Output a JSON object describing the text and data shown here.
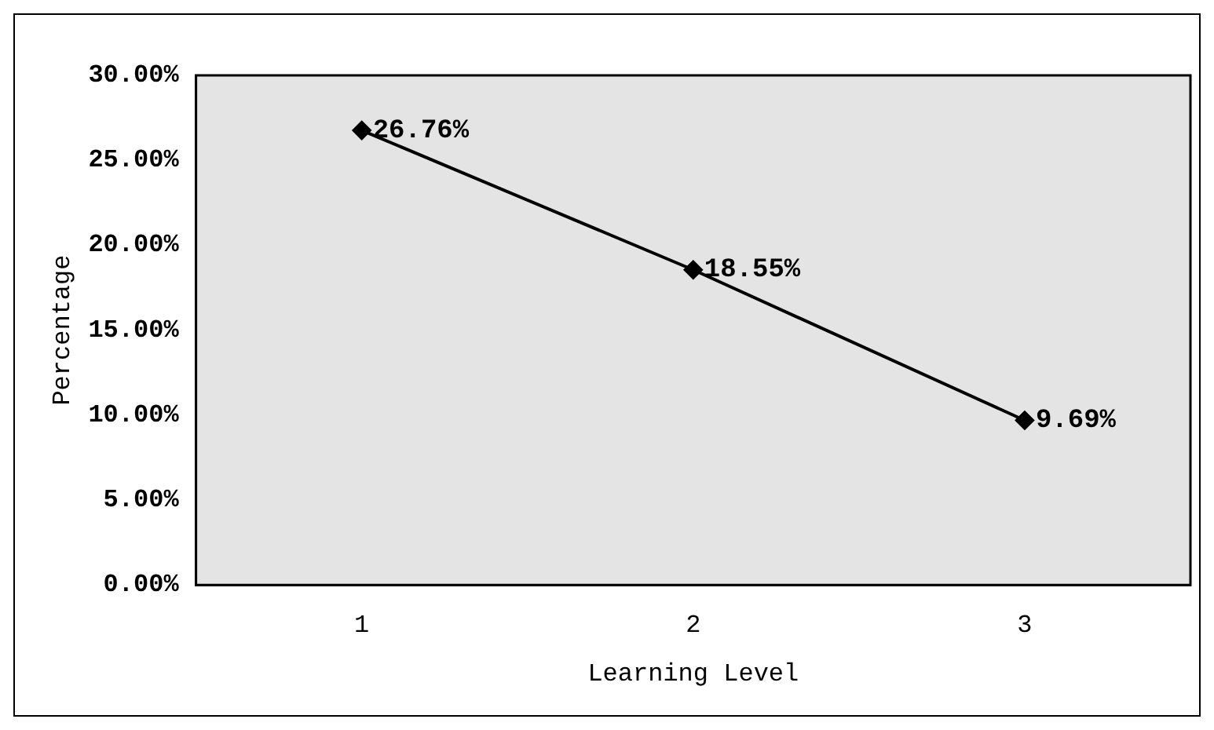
{
  "chart_data": {
    "type": "line",
    "xlabel": "Learning Level",
    "ylabel": "Percentage",
    "categories": [
      "1",
      "2",
      "3"
    ],
    "series": [
      {
        "color": "#000000",
        "values": [
          26.76,
          18.55,
          9.69
        ],
        "value_labels": [
          "26.76%",
          "18.55%",
          "9.69%"
        ]
      }
    ],
    "ylim": [
      0,
      30
    ],
    "yticks": [
      {
        "value": 0,
        "label": "0.00%"
      },
      {
        "value": 5,
        "label": "5.00%"
      },
      {
        "value": 10,
        "label": "10.00%"
      },
      {
        "value": 15,
        "label": "15.00%"
      },
      {
        "value": 20,
        "label": "20.00%"
      },
      {
        "value": 25,
        "label": "25.00%"
      },
      {
        "value": 30,
        "label": "30.00%"
      }
    ],
    "grid": false,
    "legend": false,
    "marker": "diamond",
    "line_style": "solid"
  }
}
